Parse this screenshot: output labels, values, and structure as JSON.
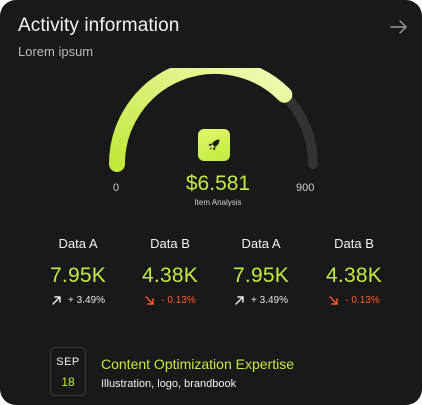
{
  "header": {
    "title": "Activity information",
    "subtitle": "Lorem ipsum",
    "action_icon": "arrow-right-icon"
  },
  "gauge": {
    "min_label": "0",
    "max_label": "900",
    "value": "$6.581",
    "caption": "Item Analysis",
    "fill_fraction": 0.75,
    "icon": "rocket-icon",
    "accent_color": "#c4ea43",
    "track_color": "#333333"
  },
  "stats": [
    {
      "label": "Data A",
      "value": "7.95K",
      "change": "+ 3.49%",
      "direction": "up"
    },
    {
      "label": "Data B",
      "value": "4.38K",
      "change": "- 0.13%",
      "direction": "down"
    },
    {
      "label": "Data A",
      "value": "7.95K",
      "change": "+ 3.49%",
      "direction": "up"
    },
    {
      "label": "Data B",
      "value": "4.38K",
      "change": "- 0.13%",
      "direction": "down"
    }
  ],
  "event": {
    "month": "SEP",
    "day": "18",
    "title": "Content Optimization Expertise",
    "description": "Illustration, logo, brandbook"
  },
  "colors": {
    "background": "#191919",
    "accent": "#c4ea43",
    "negative": "#ff5c2a"
  }
}
